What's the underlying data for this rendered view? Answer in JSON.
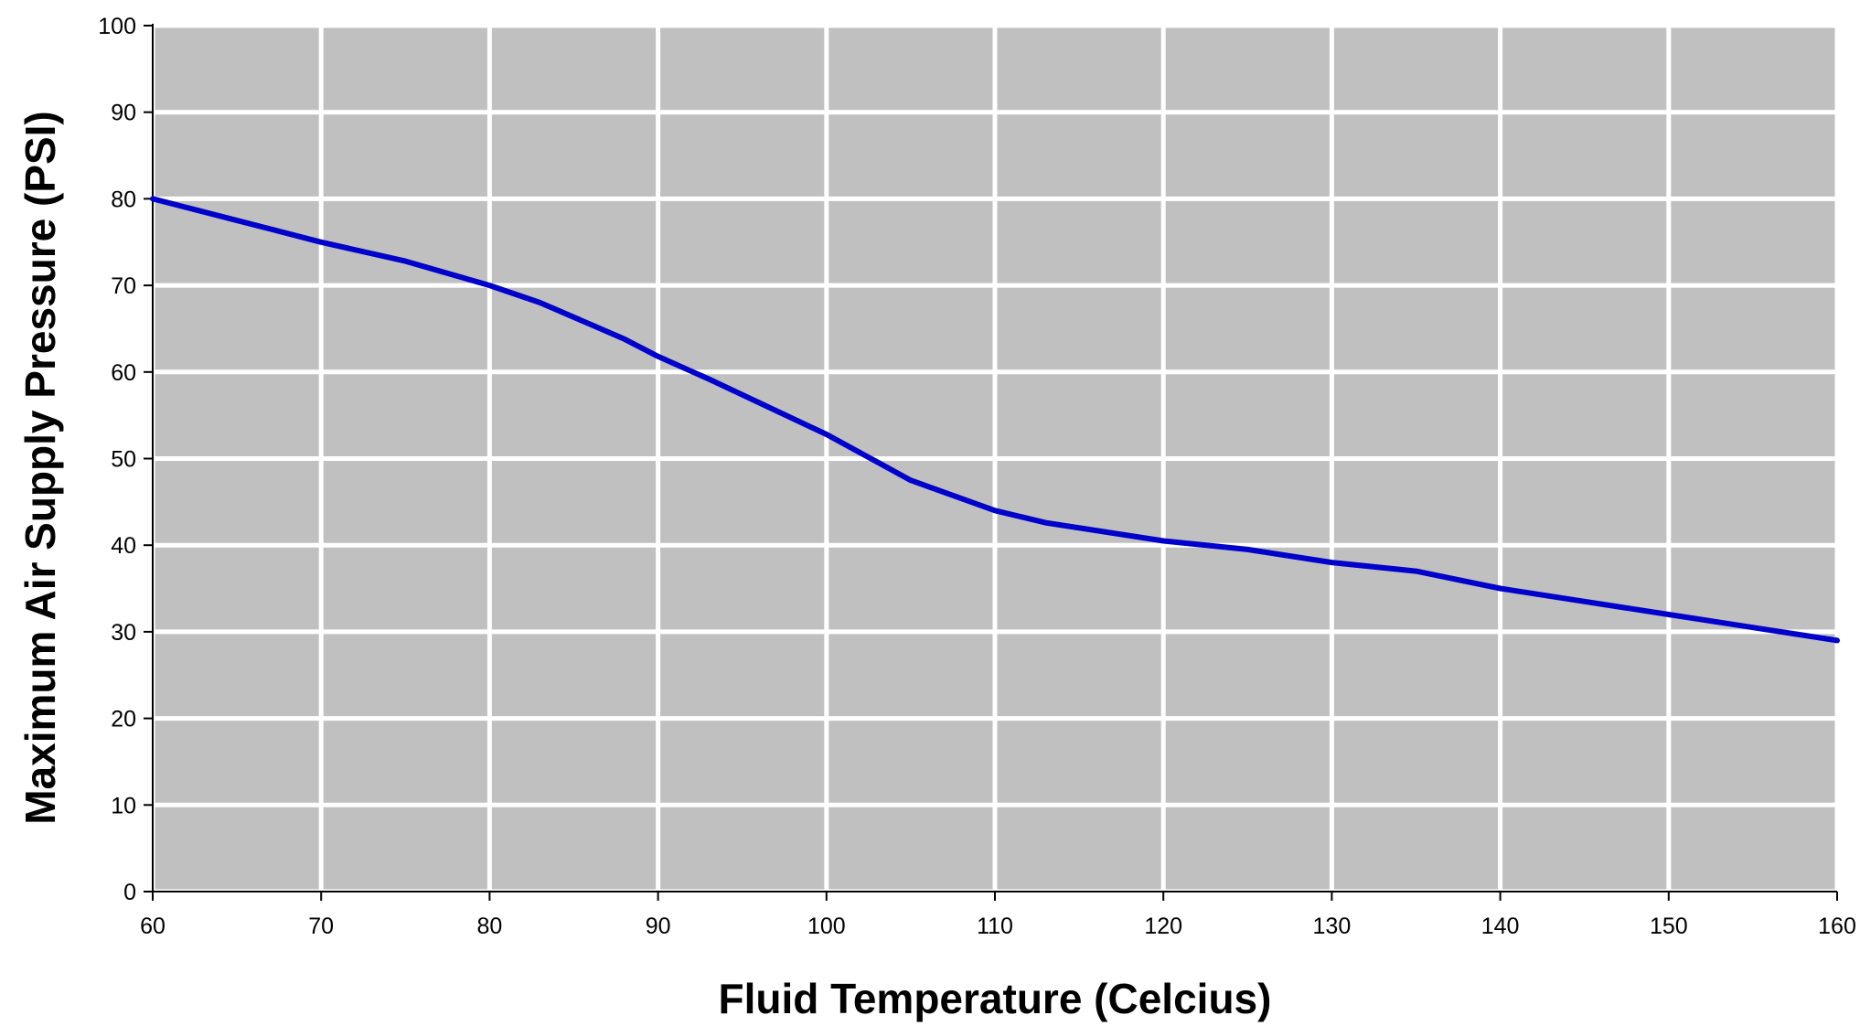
{
  "chart_data": {
    "type": "line",
    "title": "",
    "xlabel": "Fluid Temperature (Celcius)",
    "ylabel": "Maximum Air Supply Pressure (PSI)",
    "xlim": [
      60,
      160
    ],
    "ylim": [
      0,
      100
    ],
    "x_ticks": [
      "60",
      "70",
      "80",
      "90",
      "100",
      "110",
      "120",
      "130",
      "140",
      "150",
      "160"
    ],
    "y_ticks": [
      "0",
      "10",
      "20",
      "30",
      "40",
      "50",
      "60",
      "70",
      "80",
      "90",
      "100"
    ],
    "grid": true,
    "legend": "none",
    "series": [
      {
        "x": [
          60,
          67,
          70,
          75,
          80,
          83,
          88,
          90,
          93,
          100,
          105,
          110,
          113,
          120,
          125,
          130,
          135,
          140,
          150,
          160
        ],
        "y": [
          80,
          76.5,
          75,
          72.8,
          70,
          68,
          63.8,
          61.8,
          59.2,
          52.8,
          47.5,
          44,
          42.6,
          40.5,
          39.5,
          38,
          37,
          35,
          32,
          29
        ]
      }
    ]
  },
  "colors": {
    "plot_background": "#c0c0c0",
    "grid": "#ffffff",
    "line": "#0000cc",
    "axis": "#000000"
  }
}
